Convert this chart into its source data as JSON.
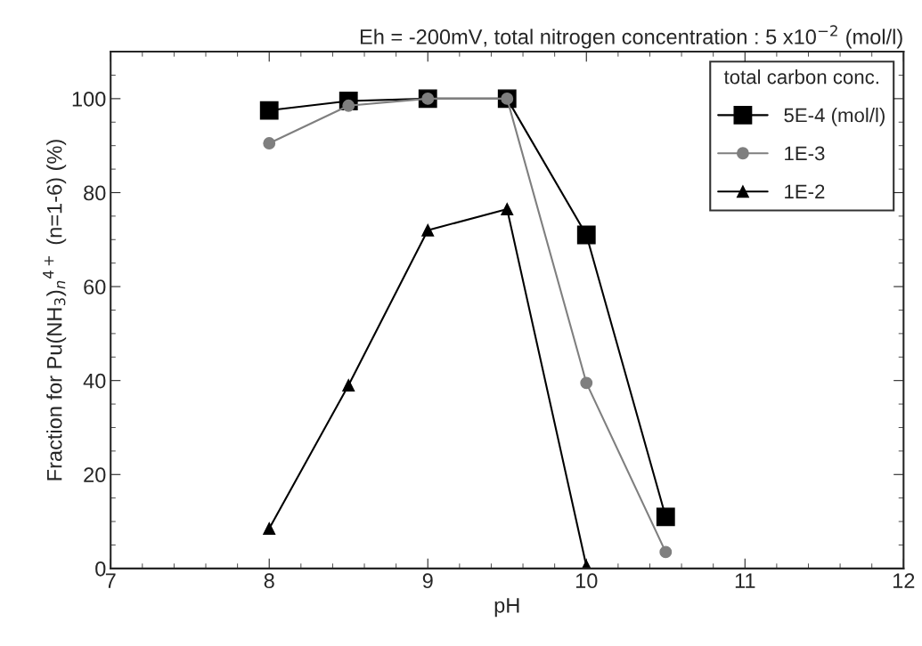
{
  "chart_data": {
    "type": "line",
    "title": "Eh = -200mV, total nitrogen concentration : 5 x10$^{−2}$ (mol/l)",
    "xlabel": "pH",
    "ylabel": "Fraction for Pu(NH$_{3}$)$_{n}$$^{4+}$ (n=1-6) (%)",
    "legend_title": "total carbon conc.",
    "legend": "top right",
    "grid": false,
    "x": [
      8,
      8.5,
      9,
      9.5,
      10,
      10.5
    ],
    "series": [
      {
        "name": "5E-4 (mol/l)",
        "color": "#000000",
        "marker": "square",
        "values": [
          97.5,
          99.5,
          100,
          100,
          71,
          11
        ]
      },
      {
        "name": "1E-3",
        "color": "#7f7f7f",
        "marker": "circle",
        "values": [
          90.5,
          98.5,
          100,
          100,
          39.5,
          3.5
        ]
      },
      {
        "name": "1E-2",
        "color": "#000000",
        "marker": "triangle",
        "values": [
          8.5,
          39,
          72,
          76.5,
          0.5,
          null
        ]
      }
    ],
    "xlim": [
      7,
      12
    ],
    "xticks": [
      7,
      8,
      9,
      10,
      11,
      12
    ],
    "ylim": [
      0,
      110
    ],
    "yticks": [
      0,
      20,
      40,
      60,
      80,
      100
    ]
  }
}
